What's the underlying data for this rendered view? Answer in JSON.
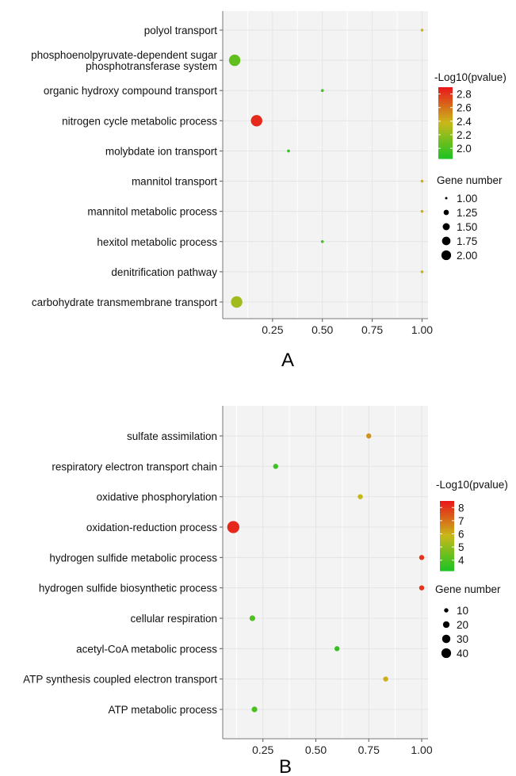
{
  "chart_data": [
    {
      "panel_label": "A",
      "type": "scatter",
      "categories": [
        "polyol transport",
        "phosphoenolpyruvate-dependent sugar\nphosphotransferase system",
        "organic hydroxy compound transport",
        "nitrogen cycle metabolic process",
        "molybdate ion transport",
        "mannitol transport",
        "mannitol metabolic process",
        "hexitol metabolic process",
        "denitrification pathway",
        "carbohydrate transmembrane transport"
      ],
      "x": [
        1.0,
        0.06,
        0.5,
        0.17,
        0.33,
        1.0,
        1.0,
        0.5,
        1.0,
        0.07
      ],
      "gene_number": [
        1,
        2,
        1,
        2,
        1,
        1,
        1,
        1,
        1,
        2
      ],
      "neg_log10_pvalue": [
        2.4,
        2.05,
        1.95,
        2.85,
        1.9,
        2.4,
        2.4,
        1.95,
        2.4,
        2.25
      ],
      "xlim": [
        0.0,
        1.03
      ],
      "xticks": [
        "0.25",
        "0.50",
        "0.75",
        "1.00"
      ],
      "xtick_values": [
        0.25,
        0.5,
        0.75,
        1.0
      ],
      "color_legend": {
        "title": "-Log10(pvalue)",
        "ticks": [
          "2.8",
          "2.6",
          "2.4",
          "2.2",
          "2.0"
        ],
        "tick_values": [
          2.8,
          2.6,
          2.4,
          2.2,
          2.0
        ],
        "range": [
          1.85,
          2.9
        ],
        "colors": [
          "#22c322",
          "#e81b1b"
        ]
      },
      "size_legend": {
        "title": "Gene number",
        "labels": [
          "1.00",
          "1.25",
          "1.50",
          "1.75",
          "2.00"
        ],
        "values": [
          1.0,
          1.25,
          1.5,
          1.75,
          2.0
        ]
      },
      "grid": true
    },
    {
      "panel_label": "B",
      "type": "scatter",
      "categories": [
        "sulfate assimilation",
        "respiratory electron transport chain",
        "oxidative phosphorylation",
        "oxidation-reduction process",
        "hydrogen sulfide metabolic process",
        "hydrogen sulfide biosynthetic process",
        "cellular respiration",
        "acetyl-CoA metabolic process",
        "ATP synthesis coupled electron transport",
        "ATP metabolic process"
      ],
      "x": [
        0.75,
        0.31,
        0.71,
        0.11,
        1.0,
        1.0,
        0.2,
        0.6,
        0.83,
        0.21
      ],
      "gene_number": [
        10,
        10,
        10,
        45,
        10,
        10,
        12,
        4,
        9,
        12
      ],
      "neg_log10_pvalue": [
        6.5,
        3.6,
        5.8,
        8.3,
        8.1,
        8.1,
        3.9,
        3.5,
        6.0,
        3.8
      ],
      "xlim": [
        0.06,
        1.03
      ],
      "xticks": [
        "0.25",
        "0.50",
        "0.75",
        "1.00"
      ],
      "xtick_values": [
        0.25,
        0.5,
        0.75,
        1.0
      ],
      "color_legend": {
        "title": "-Log10(pvalue)",
        "ticks": [
          "8",
          "7",
          "6",
          "5",
          "4"
        ],
        "tick_values": [
          8,
          7,
          6,
          5,
          4
        ],
        "range": [
          3.2,
          8.5
        ],
        "colors": [
          "#22c322",
          "#e81b1b"
        ]
      },
      "size_legend": {
        "title": "Gene number",
        "labels": [
          "10",
          "20",
          "30",
          "40"
        ],
        "values": [
          10,
          20,
          30,
          40
        ]
      },
      "grid": true
    }
  ]
}
